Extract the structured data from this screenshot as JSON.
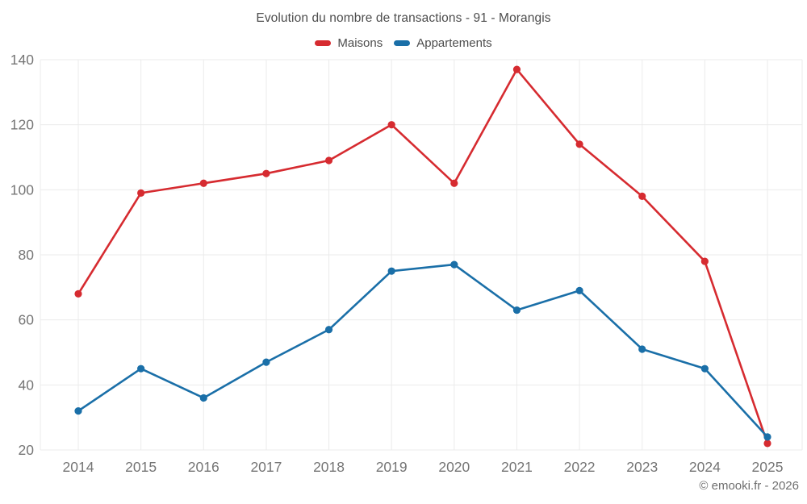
{
  "header": {
    "title": "Evolution du nombre de transactions - 91 - Morangis"
  },
  "legend": {
    "items": [
      {
        "label": "Maisons",
        "color": "#d62b30"
      },
      {
        "label": "Appartements",
        "color": "#1a6fa8"
      }
    ]
  },
  "footer": {
    "credit": "© emooki.fr - 2026"
  },
  "chart_data": {
    "type": "line",
    "title": "Evolution du nombre de transactions - 91 - Morangis",
    "x": [
      2014,
      2015,
      2016,
      2017,
      2018,
      2019,
      2020,
      2021,
      2022,
      2023,
      2024,
      2025
    ],
    "series": [
      {
        "name": "Maisons",
        "color": "#d62b30",
        "values": [
          68,
          99,
          102,
          105,
          109,
          120,
          102,
          137,
          114,
          98,
          78,
          22
        ]
      },
      {
        "name": "Appartements",
        "color": "#1a6fa8",
        "values": [
          32,
          45,
          36,
          47,
          57,
          75,
          77,
          63,
          69,
          51,
          45,
          24
        ]
      }
    ],
    "ylim": [
      20,
      140
    ],
    "y_ticks": [
      20,
      40,
      60,
      80,
      100,
      120,
      140
    ],
    "grid": true,
    "legend_position": "top",
    "marker": "circle",
    "grid_color": "#ebebeb",
    "tick_label_color": "#757575"
  }
}
